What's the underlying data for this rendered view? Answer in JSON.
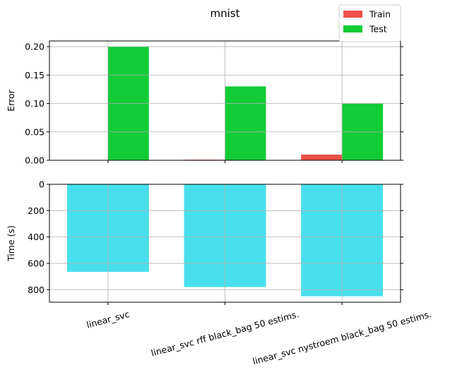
{
  "chart_data": [
    {
      "type": "bar",
      "title": "mnist",
      "ylabel": "Error",
      "categories": [
        null,
        null,
        null
      ],
      "series": [
        {
          "name": "Train",
          "color": "#ee5047",
          "values": [
            0,
            0.001,
            0.01
          ]
        },
        {
          "name": "Test",
          "color": "#12cc36",
          "values": [
            0.2,
            0.13,
            0.1
          ]
        }
      ],
      "ylim": [
        0,
        0.21
      ],
      "yticks": [
        {
          "value": 0,
          "label": "0.00"
        },
        {
          "value": 0.05,
          "label": "0.05"
        },
        {
          "value": 0.1,
          "label": "0.10"
        },
        {
          "value": 0.15,
          "label": "0.15"
        },
        {
          "value": 0.2,
          "label": "0.20"
        }
      ],
      "grid": true,
      "legend": "upper right"
    },
    {
      "type": "bar",
      "ylabel": "Time (s)",
      "categories": [
        "linear_svc",
        "linear_svc rff black_bag 50 estims.",
        "linear_svc nystroem black_bag 50 estims."
      ],
      "values": [
        665,
        780,
        850
      ],
      "color": "#48dfec",
      "ylim": [
        0,
        895
      ],
      "inverted": true,
      "yticks": [
        0,
        200,
        400,
        600,
        800
      ],
      "grid": true
    }
  ]
}
